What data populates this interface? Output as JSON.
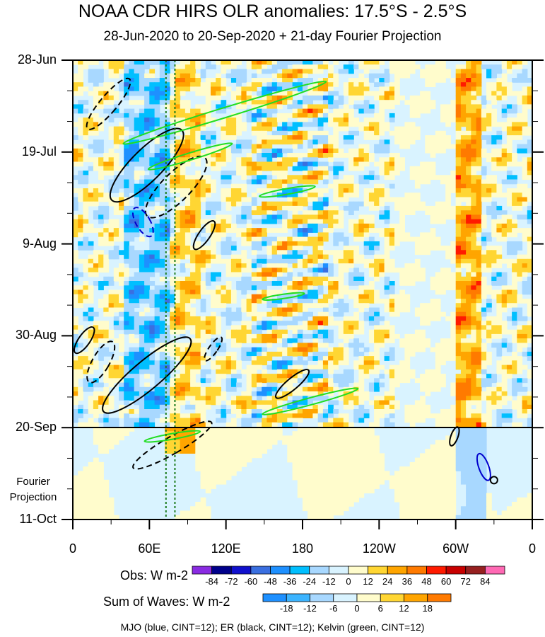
{
  "chart_data": {
    "type": "heatmap",
    "title": "NOAA CDR HIRS OLR anomalies: 17.5°S - 2.5°S",
    "subtitle": "28-Jun-2020 to 20-Sep-2020 + 21-day Fourier Projection",
    "x_axis": {
      "ticks": [
        "0",
        "60E",
        "120E",
        "180",
        "120W",
        "60W",
        "0"
      ],
      "range_deg_east": [
        0,
        360
      ]
    },
    "y_axis": {
      "ticks": [
        "28-Jun",
        "19-Jul",
        "9-Aug",
        "30-Aug",
        "20-Sep",
        "11-Oct"
      ],
      "range": [
        "2020-06-28",
        "2020-10-11"
      ],
      "inverted": true
    },
    "projection_label": "Fourier\nProjection",
    "projection_start": "2020-09-20",
    "reference_lines_lon": [
      73,
      80
    ],
    "colorbars": [
      {
        "title": "Obs: W m-2",
        "levels": [
          "-84",
          "-72",
          "-60",
          "-48",
          "-36",
          "-24",
          "-12",
          "0",
          "12",
          "24",
          "36",
          "48",
          "60",
          "72",
          "84"
        ],
        "colors": [
          "#8a2be2",
          "#00008b",
          "#1010cd",
          "#3a6fe0",
          "#1e90ff",
          "#00bfff",
          "#a8d8ff",
          "#d9f3ff",
          "#fffccc",
          "#ffd633",
          "#ffa500",
          "#ff7a00",
          "#ff1a00",
          "#c80000",
          "#962020",
          "#ff69b4"
        ]
      },
      {
        "title": "Sum of Waves: W m-2",
        "levels": [
          "-18",
          "-12",
          "-6",
          "0",
          "6",
          "12",
          "18"
        ],
        "colors": [
          "#1e90ff",
          "#3cb4ff",
          "#a8d8ff",
          "#d9f3ff",
          "#fffccc",
          "#ffd633",
          "#ffa500",
          "#ff7a00"
        ]
      }
    ],
    "contour_legend": "MJO (blue, CINT=12); ER (black, CINT=12); Kelvin (green, CINT=12)",
    "contour_colors": {
      "mjo": "#0000cc",
      "er": "#000000",
      "kelvin": "#22dd22"
    }
  }
}
